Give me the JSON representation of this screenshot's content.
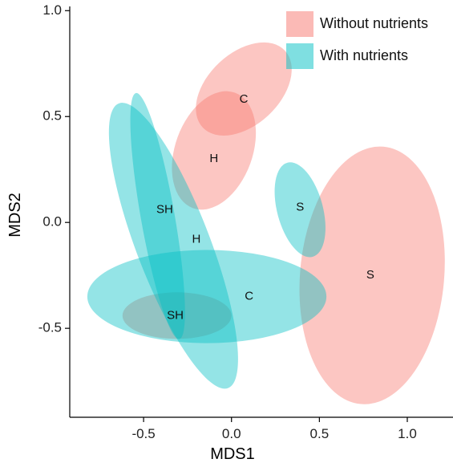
{
  "chart_data": {
    "type": "scatter",
    "xlabel": "MDS1",
    "ylabel": "MDS2",
    "xlim": [
      -0.92,
      1.26
    ],
    "ylim": [
      -0.92,
      1.02
    ],
    "xticks": [
      -0.5,
      0.0,
      0.5,
      1.0
    ],
    "xtick_labels": [
      "-0.5",
      "0.0",
      "0.5",
      "1.0"
    ],
    "yticks": [
      -0.5,
      0.0,
      0.5,
      1.0
    ],
    "ytick_labels": [
      "-0.5",
      "0.0",
      "0.5",
      "1.0"
    ],
    "grid": false,
    "legend_position": "top-right",
    "series": [
      {
        "name": "Without nutrients",
        "color": "#F8766D",
        "ellipses": [
          {
            "label": "C",
            "cx": 0.07,
            "cy": 0.63,
            "rx": 0.32,
            "ry": 0.17,
            "angle_deg": 43
          },
          {
            "label": "H",
            "cx": -0.1,
            "cy": 0.34,
            "rx": 0.22,
            "ry": 0.29,
            "angle_deg": -20
          },
          {
            "label": "S",
            "cx": 0.8,
            "cy": -0.25,
            "rx": 0.41,
            "ry": 0.61,
            "angle_deg": -5
          },
          {
            "label": "SH",
            "cx": -0.31,
            "cy": -0.44,
            "rx": 0.31,
            "ry": 0.11,
            "angle_deg": 0
          }
        ]
      },
      {
        "name": "With nutrients",
        "color": "#00BFC4",
        "ellipses": [
          {
            "label": "S",
            "cx": 0.39,
            "cy": 0.06,
            "rx": 0.13,
            "ry": 0.23,
            "angle_deg": 15
          },
          {
            "label": "SH",
            "cx": -0.33,
            "cy": -0.11,
            "rx": 0.21,
            "ry": 0.72,
            "angle_deg": 21
          },
          {
            "label": "H",
            "cx": -0.42,
            "cy": 0.03,
            "rx": 0.71,
            "ry": 0.08,
            "angle_deg": -80
          },
          {
            "label": "C",
            "cx": -0.14,
            "cy": -0.35,
            "rx": 0.68,
            "ry": 0.22,
            "angle_deg": 0
          }
        ]
      }
    ],
    "labels": [
      {
        "text": "C",
        "x": 0.07,
        "y": 0.58
      },
      {
        "text": "H",
        "x": -0.1,
        "y": 0.3
      },
      {
        "text": "S",
        "x": 0.79,
        "y": -0.25
      },
      {
        "text": "SH",
        "x": -0.32,
        "y": -0.44
      },
      {
        "text": "S",
        "x": 0.39,
        "y": 0.07
      },
      {
        "text": "SH",
        "x": -0.38,
        "y": 0.06
      },
      {
        "text": "H",
        "x": -0.2,
        "y": -0.08
      },
      {
        "text": "C",
        "x": 0.1,
        "y": -0.35
      }
    ]
  }
}
